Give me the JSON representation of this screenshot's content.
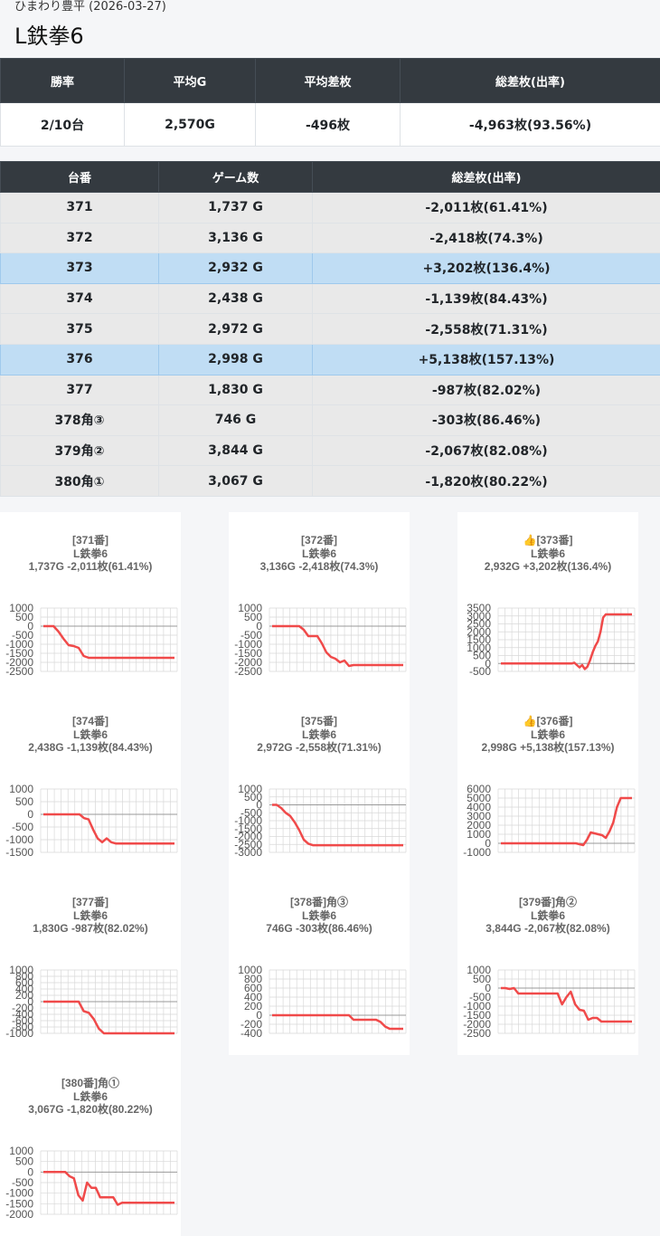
{
  "header": {
    "subtitle": "ひまわり豊平 (2026-03-27)",
    "title": "L鉄拳6"
  },
  "summary": {
    "headers": [
      "勝率",
      "平均G",
      "平均差枚",
      "総差枚(出率)"
    ],
    "values": [
      "2/10台",
      "2,570G",
      "-496枚",
      "-4,963枚(93.56%)"
    ]
  },
  "machines": {
    "headers": [
      "台番",
      "ゲーム数",
      "総差枚(出率)"
    ],
    "rows": [
      {
        "id": "371",
        "games": "1,737 G",
        "diff": "-2,011枚(61.41%)",
        "highlight": false
      },
      {
        "id": "372",
        "games": "3,136 G",
        "diff": "-2,418枚(74.3%)",
        "highlight": false
      },
      {
        "id": "373",
        "games": "2,932 G",
        "diff": "+3,202枚(136.4%)",
        "highlight": true
      },
      {
        "id": "374",
        "games": "2,438 G",
        "diff": "-1,139枚(84.43%)",
        "highlight": false
      },
      {
        "id": "375",
        "games": "2,972 G",
        "diff": "-2,558枚(71.31%)",
        "highlight": false
      },
      {
        "id": "376",
        "games": "2,998 G",
        "diff": "+5,138枚(157.13%)",
        "highlight": true
      },
      {
        "id": "377",
        "games": "1,830 G",
        "diff": "-987枚(82.02%)",
        "highlight": false
      },
      {
        "id": "378角③",
        "games": "746 G",
        "diff": "-303枚(86.46%)",
        "highlight": false
      },
      {
        "id": "379角②",
        "games": "3,844 G",
        "diff": "-2,067枚(82.08%)",
        "highlight": false
      },
      {
        "id": "380角①",
        "games": "3,067 G",
        "diff": "-1,820枚(80.22%)",
        "highlight": false
      }
    ]
  },
  "colors": {
    "line": "#f04a4a",
    "grid": "#d8d8d8",
    "zero_line": "#999999",
    "header_bg": "#343a40",
    "highlight_row": "#c0ddf4"
  },
  "chart_data": [
    {
      "type": "line",
      "title": [
        "[371番]",
        "L鉄拳6",
        "1,737G -2,011枚(61.41%)"
      ],
      "ticks": [
        1000,
        500,
        0,
        -500,
        -1000,
        -1500,
        -2000,
        -2500
      ],
      "ylim": [
        -2500,
        1000
      ],
      "values": [
        0,
        0,
        0,
        -300,
        -700,
        -1050,
        -1100,
        -1200,
        -1650,
        -1750,
        -1750,
        -1750,
        -1750,
        -1750,
        -1750,
        -1750,
        -1750,
        -1750,
        -1750,
        -1750,
        -1750,
        -1750,
        -1750,
        -1750,
        -1750,
        -1750,
        -1750
      ]
    },
    {
      "type": "line",
      "title": [
        "[372番]",
        "L鉄拳6",
        "3,136G -2,418枚(74.3%)"
      ],
      "ticks": [
        1000,
        500,
        0,
        -500,
        -1000,
        -1500,
        -2000,
        -2500
      ],
      "ylim": [
        -2500,
        1000
      ],
      "values": [
        0,
        0,
        0,
        0,
        0,
        0,
        0,
        -200,
        -550,
        -550,
        -550,
        -950,
        -1450,
        -1700,
        -1800,
        -2000,
        -1900,
        -2200,
        -2150,
        -2150,
        -2150,
        -2150,
        -2150,
        -2150,
        -2150,
        -2150,
        -2150,
        -2150,
        -2150,
        -2150
      ]
    },
    {
      "type": "line",
      "title": [
        "👍[373番]",
        "L鉄拳6",
        "2,932G +3,202枚(136.4%)"
      ],
      "ticks": [
        3500,
        3000,
        2500,
        2000,
        1500,
        1000,
        500,
        0,
        -500
      ],
      "ylim": [
        -500,
        3500
      ],
      "values": [
        0,
        0,
        0,
        0,
        0,
        0,
        0,
        0,
        0,
        0,
        0,
        0,
        0,
        0,
        0,
        0,
        0,
        0,
        0,
        0,
        0,
        0,
        0,
        0,
        0,
        0,
        0,
        0,
        50,
        -100,
        -250,
        -100,
        -350,
        -200,
        200,
        700,
        1100,
        1400,
        2000,
        2900,
        3100,
        3100,
        3100,
        3100,
        3100,
        3100,
        3100,
        3100,
        3100,
        3100,
        3100
      ]
    },
    {
      "type": "line",
      "title": [
        "[374番]",
        "L鉄拳6",
        "2,438G -1,139枚(84.43%)"
      ],
      "ticks": [
        1000,
        500,
        0,
        -500,
        -1000,
        -1500
      ],
      "ylim": [
        -1500,
        1000
      ],
      "values": [
        0,
        0,
        0,
        0,
        0,
        0,
        0,
        0,
        0,
        -150,
        -200,
        -600,
        -950,
        -1100,
        -950,
        -1100,
        -1150,
        -1150,
        -1150,
        -1150,
        -1150,
        -1150,
        -1150,
        -1150,
        -1150,
        -1150,
        -1150,
        -1150,
        -1150,
        -1150
      ]
    },
    {
      "type": "line",
      "title": [
        "[375番]",
        "L鉄拳6",
        "2,972G -2,558枚(71.31%)"
      ],
      "ticks": [
        1000,
        500,
        0,
        -500,
        -1000,
        -1500,
        -2000,
        -2500,
        -3000
      ],
      "ylim": [
        -3000,
        1000
      ],
      "values": [
        0,
        0,
        -200,
        -500,
        -700,
        -1100,
        -1600,
        -2200,
        -2450,
        -2550,
        -2550,
        -2550,
        -2550,
        -2550,
        -2550,
        -2550,
        -2550,
        -2550,
        -2550,
        -2550,
        -2550,
        -2550,
        -2550,
        -2550,
        -2550,
        -2550,
        -2550,
        -2550,
        -2550,
        -2550
      ]
    },
    {
      "type": "line",
      "title": [
        "👍[376番]",
        "L鉄拳6",
        "2,998G +5,138枚(157.13%)"
      ],
      "ticks": [
        6000,
        5000,
        4000,
        3000,
        2000,
        1000,
        0,
        -1000
      ],
      "ylim": [
        -1000,
        6000
      ],
      "values": [
        0,
        0,
        0,
        0,
        0,
        0,
        0,
        0,
        0,
        0,
        0,
        0,
        0,
        0,
        0,
        0,
        0,
        0,
        0,
        0,
        0,
        -100,
        -200,
        400,
        1200,
        1100,
        1000,
        900,
        600,
        1300,
        2300,
        4000,
        5000,
        5000,
        5000,
        5000
      ]
    },
    {
      "type": "line",
      "title": [
        "[377番]",
        "L鉄拳6",
        "1,830G -987枚(82.02%)"
      ],
      "ticks": [
        1000,
        800,
        600,
        400,
        200,
        0,
        -200,
        -400,
        -600,
        -800,
        -1000
      ],
      "ylim": [
        -1000,
        1000
      ],
      "values": [
        0,
        0,
        0,
        0,
        0,
        0,
        0,
        0,
        -300,
        -350,
        -550,
        -850,
        -1000,
        -1000,
        -1000,
        -1000,
        -1000,
        -1000,
        -1000,
        -1000,
        -1000,
        -1000,
        -1000,
        -1000,
        -1000,
        -1000,
        -1000
      ]
    },
    {
      "type": "line",
      "title": [
        "[378番]角③",
        "L鉄拳6",
        "746G -303枚(86.46%)"
      ],
      "ticks": [
        1000,
        800,
        600,
        400,
        200,
        0,
        -200,
        -400
      ],
      "ylim": [
        -400,
        1000
      ],
      "values": [
        0,
        0,
        0,
        0,
        0,
        0,
        0,
        0,
        0,
        0,
        0,
        0,
        0,
        0,
        0,
        0,
        0,
        0,
        -100,
        -100,
        -100,
        -100,
        -100,
        -100,
        -150,
        -250,
        -300,
        -300,
        -300,
        -300
      ]
    },
    {
      "type": "line",
      "title": [
        "[379番]角②",
        "L鉄拳6",
        "3,844G -2,067枚(82.08%)"
      ],
      "ticks": [
        1000,
        500,
        0,
        -500,
        -1000,
        -1500,
        -2000,
        -2500
      ],
      "ylim": [
        -2500,
        1000
      ],
      "values": [
        0,
        0,
        -50,
        0,
        -300,
        -300,
        -300,
        -300,
        -300,
        -300,
        -300,
        -300,
        -300,
        -300,
        -900,
        -500,
        -200,
        -900,
        -1200,
        -1250,
        -1750,
        -1650,
        -1650,
        -1850,
        -1850,
        -1850,
        -1850,
        -1850,
        -1850,
        -1850,
        -1850
      ]
    },
    {
      "type": "line",
      "title": [
        "[380番]角①",
        "L鉄拳6",
        "3,067G -1,820枚(80.22%)"
      ],
      "ticks": [
        1000,
        500,
        0,
        -500,
        -1000,
        -1500,
        -2000
      ],
      "ylim": [
        -2000,
        1000
      ],
      "values": [
        0,
        0,
        0,
        0,
        0,
        0,
        -200,
        -300,
        -1100,
        -1350,
        -500,
        -750,
        -750,
        -1200,
        -1200,
        -1200,
        -1200,
        -1550,
        -1450,
        -1450,
        -1450,
        -1450,
        -1450,
        -1450,
        -1450,
        -1450,
        -1450,
        -1450,
        -1450,
        -1450,
        -1450
      ]
    }
  ]
}
